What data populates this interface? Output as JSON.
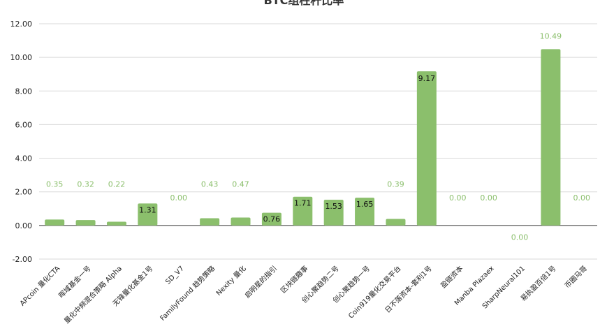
{
  "chart_data": {
    "type": "bar",
    "title": "BTC组柱杆比率",
    "xlabel": "",
    "ylabel": "",
    "ylim": [
      -2,
      12
    ],
    "yticks": [
      "-2.00",
      "0.00",
      "2.00",
      "4.00",
      "6.00",
      "8.00",
      "10.00",
      "12.00"
    ],
    "grid": true,
    "bar_color": "#8bbf6c",
    "categories": [
      "APcoin 量化CTA",
      "晖域基金一号",
      "量化中频混合策略 Alpha",
      "无锋量化基金1号",
      "SD_V7",
      "FamilyFound 趋势策略",
      "Nexity 量化",
      "启明星的指引",
      "区块链趣事",
      "创心聚趋势二号",
      "创心聚趋势一号",
      "Coin919量化交易平台",
      "日不落资本-套利1号",
      "盈链资本",
      "Manba Plazaex",
      "SharpNeural101",
      "易执盈百倍1号",
      "币圈马哥"
    ],
    "values": [
      0.35,
      0.32,
      0.22,
      1.31,
      0.0,
      0.43,
      0.47,
      0.76,
      1.71,
      1.53,
      1.65,
      0.39,
      9.17,
      0.0,
      0.0,
      0.0,
      10.49,
      0.0
    ],
    "data_labels": [
      "0.35",
      "0.32",
      "0.22",
      "1.31",
      "0.00",
      "0.43",
      "0.47",
      "0.76",
      "1.71",
      "1.53",
      "1.65",
      "0.39",
      "9.17",
      "0.00",
      "0.00",
      "0.00",
      "10.49",
      "0.00"
    ]
  }
}
